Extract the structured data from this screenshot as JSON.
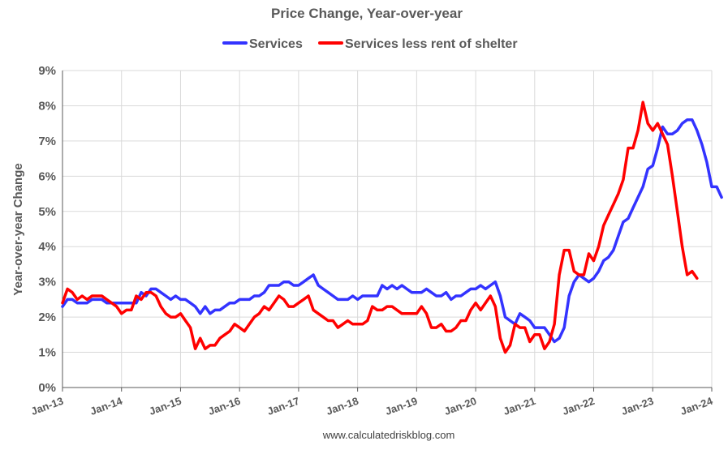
{
  "chart_data": {
    "type": "line",
    "title": "Price Change, Year-over-year",
    "ylabel": "Year-over-year Change",
    "xlabel": "",
    "ylim": [
      0,
      9
    ],
    "yticks": [
      "0%",
      "1%",
      "2%",
      "3%",
      "4%",
      "5%",
      "6%",
      "7%",
      "8%",
      "9%"
    ],
    "xlim": [
      "2013-01",
      "2024-01"
    ],
    "xticks": [
      "Jan-13",
      "Jan-14",
      "Jan-15",
      "Jan-16",
      "Jan-17",
      "Jan-18",
      "Jan-19",
      "Jan-20",
      "Jan-21",
      "Jan-22",
      "Jan-23",
      "Jan-24"
    ],
    "start": "2013-01",
    "frequency": "monthly",
    "grid": true,
    "legend_position": "top",
    "series": [
      {
        "name": "Services",
        "color": "#3333ff",
        "values": [
          2.3,
          2.5,
          2.5,
          2.4,
          2.4,
          2.4,
          2.5,
          2.5,
          2.5,
          2.4,
          2.4,
          2.4,
          2.4,
          2.4,
          2.4,
          2.4,
          2.7,
          2.6,
          2.8,
          2.8,
          2.7,
          2.6,
          2.5,
          2.6,
          2.5,
          2.5,
          2.4,
          2.3,
          2.1,
          2.3,
          2.1,
          2.2,
          2.2,
          2.3,
          2.4,
          2.4,
          2.5,
          2.5,
          2.5,
          2.6,
          2.6,
          2.7,
          2.9,
          2.9,
          2.9,
          3.0,
          3.0,
          2.9,
          2.9,
          3.0,
          3.1,
          3.2,
          2.9,
          2.8,
          2.7,
          2.6,
          2.5,
          2.5,
          2.5,
          2.6,
          2.5,
          2.6,
          2.6,
          2.6,
          2.6,
          2.9,
          2.8,
          2.9,
          2.8,
          2.9,
          2.8,
          2.7,
          2.7,
          2.7,
          2.8,
          2.7,
          2.6,
          2.6,
          2.7,
          2.5,
          2.6,
          2.6,
          2.7,
          2.8,
          2.8,
          2.9,
          2.8,
          2.9,
          3.0,
          2.6,
          2.0,
          1.9,
          1.8,
          2.1,
          2.0,
          1.9,
          1.7,
          1.7,
          1.7,
          1.5,
          1.3,
          1.4,
          1.7,
          2.6,
          3.0,
          3.2,
          3.1,
          3.0,
          3.1,
          3.3,
          3.6,
          3.7,
          3.9,
          4.3,
          4.7,
          4.8,
          5.1,
          5.4,
          5.7,
          6.2,
          6.3,
          6.8,
          7.4,
          7.2,
          7.2,
          7.3,
          7.5,
          7.6,
          7.6,
          7.3,
          6.9,
          6.4,
          5.7,
          5.7,
          5.4
        ]
      },
      {
        "name": "Services less rent of shelter",
        "color": "#ff0000",
        "values": [
          2.4,
          2.8,
          2.7,
          2.5,
          2.6,
          2.5,
          2.6,
          2.6,
          2.6,
          2.5,
          2.4,
          2.3,
          2.1,
          2.2,
          2.2,
          2.6,
          2.5,
          2.7,
          2.7,
          2.6,
          2.3,
          2.1,
          2.0,
          2.0,
          2.1,
          1.9,
          1.7,
          1.1,
          1.4,
          1.1,
          1.2,
          1.2,
          1.4,
          1.5,
          1.6,
          1.8,
          1.7,
          1.6,
          1.8,
          2.0,
          2.1,
          2.3,
          2.2,
          2.4,
          2.6,
          2.5,
          2.3,
          2.3,
          2.4,
          2.5,
          2.6,
          2.2,
          2.1,
          2.0,
          1.9,
          1.9,
          1.7,
          1.8,
          1.9,
          1.8,
          1.8,
          1.8,
          1.9,
          2.3,
          2.2,
          2.2,
          2.3,
          2.3,
          2.2,
          2.1,
          2.1,
          2.1,
          2.1,
          2.3,
          2.1,
          1.7,
          1.7,
          1.8,
          1.6,
          1.6,
          1.7,
          1.9,
          1.9,
          2.2,
          2.4,
          2.2,
          2.4,
          2.6,
          2.3,
          1.4,
          1.0,
          1.2,
          1.8,
          1.7,
          1.7,
          1.3,
          1.5,
          1.5,
          1.1,
          1.3,
          1.8,
          3.2,
          3.9,
          3.9,
          3.3,
          3.2,
          3.2,
          3.8,
          3.6,
          4.0,
          4.6,
          4.9,
          5.2,
          5.5,
          5.9,
          6.8,
          6.8,
          7.3,
          8.1,
          7.5,
          7.3,
          7.5,
          7.2,
          6.9,
          6.0,
          5.0,
          4.0,
          3.2,
          3.3,
          3.1
        ]
      }
    ],
    "footer": "www.calculatedriskblog.com"
  }
}
